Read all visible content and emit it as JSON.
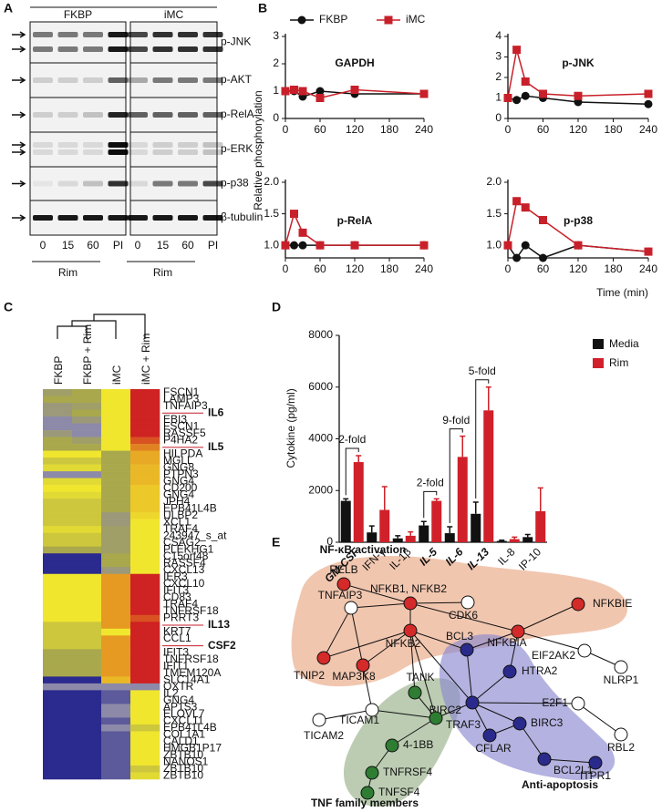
{
  "panel_labels": [
    "A",
    "B",
    "C",
    "D",
    "E"
  ],
  "blot": {
    "groups": [
      "FKBP",
      "iMC"
    ],
    "rows": [
      "p-JNK",
      "p-AKT",
      "p-RelA",
      "p-ERK",
      "p-p38",
      "β-tubulin"
    ],
    "lanes": [
      "0",
      "15",
      "60",
      "PI"
    ],
    "treatment": "Rim"
  },
  "chart_data": [
    {
      "type": "line",
      "ylabel": "Relative phosphorylation",
      "xlabel": "Time (min)",
      "x": [
        0,
        15,
        30,
        60,
        120,
        240
      ],
      "xlim": [
        0,
        240
      ],
      "xticks": [
        0,
        60,
        120,
        180,
        240
      ],
      "series": [
        {
          "name": "FKBP",
          "color": "#111111",
          "marker": "circle"
        },
        {
          "name": "iMC",
          "color": "#c8202a",
          "marker": "square"
        }
      ],
      "subplots": [
        {
          "title": "GAPDH",
          "ylim": [
            0,
            3
          ],
          "yticks": [
            0,
            1,
            2,
            3
          ],
          "values": [
            [
              1,
              1,
              0.8,
              1,
              0.9,
              0.9
            ],
            [
              1,
              1.05,
              1,
              0.75,
              1.05,
              0.9
            ]
          ]
        },
        {
          "title": "p-JNK",
          "ylim": [
            0,
            4
          ],
          "yticks": [
            0,
            1,
            2,
            3,
            4
          ],
          "values": [
            [
              1,
              0.9,
              1.1,
              1,
              0.8,
              0.7
            ],
            [
              1,
              3.35,
              1.8,
              1.2,
              1.1,
              1.2
            ]
          ]
        },
        {
          "title": "p-RelA",
          "ylim": [
            0.8,
            2
          ],
          "yticks": [
            {
              "value": 1,
              "label": "1.0"
            },
            {
              "value": 1.5,
              "label": "1.5"
            },
            {
              "value": 2,
              "label": "2.0"
            }
          ],
          "values": [
            [
              1,
              1,
              1,
              1,
              1,
              1
            ],
            [
              1,
              1.5,
              1.2,
              1,
              1,
              1
            ]
          ]
        },
        {
          "title": "p-p38",
          "ylim": [
            0.8,
            2
          ],
          "yticks": [
            {
              "value": 1,
              "label": "1.0"
            },
            {
              "value": 1.5,
              "label": "1.5"
            },
            {
              "value": 2,
              "label": "2.0"
            }
          ],
          "values": [
            [
              1,
              0.8,
              1,
              0.8,
              1,
              0.9
            ],
            [
              1,
              1.7,
              1.6,
              1.4,
              1,
              0.9
            ]
          ]
        }
      ]
    },
    {
      "type": "bar",
      "ylabel": "Cytokine (pg/ml)",
      "categories": [
        "GM-CSF",
        "IFN-γ",
        "IL-1β",
        "IL-5",
        "IL-6",
        "IL-13",
        "IL-8",
        "IP-10"
      ],
      "emphasis": [
        true,
        false,
        false,
        true,
        true,
        true,
        false,
        false
      ],
      "series": [
        {
          "name": "Media",
          "color": "#111111",
          "values": [
            1600,
            380,
            150,
            650,
            350,
            1100,
            50,
            200
          ],
          "errors": [
            80,
            250,
            100,
            150,
            250,
            450,
            30,
            100
          ]
        },
        {
          "name": "Rim",
          "color": "#d0202a",
          "values": [
            3100,
            1250,
            250,
            1600,
            3300,
            5100,
            120,
            1200
          ],
          "errors": [
            250,
            900,
            150,
            80,
            800,
            900,
            80,
            900
          ]
        }
      ],
      "ylim": [
        0,
        8000
      ],
      "yticks": [
        0,
        2000,
        4000,
        6000,
        8000
      ],
      "annotations": [
        {
          "text": "2-fold",
          "category": 0
        },
        {
          "text": "2-fold",
          "category": 3
        },
        {
          "text": "9-fold",
          "category": 4
        },
        {
          "text": "5-fold",
          "category": 5
        }
      ]
    }
  ],
  "heatmap": {
    "columns": [
      "FKBP",
      "FKBP + Rim",
      "iMC",
      "iMC + Rim"
    ],
    "colorscale": [
      [
        -2,
        "#2b2a8e"
      ],
      [
        -1,
        "#8c8aa8"
      ],
      [
        0,
        "#a9a84c"
      ],
      [
        1,
        "#f0e62e"
      ],
      [
        1.5,
        "#e69a22"
      ],
      [
        2,
        "#cf2222"
      ]
    ],
    "rows": [
      {
        "label": "FSCN1",
        "values": [
          -0.3,
          0,
          1,
          2
        ]
      },
      {
        "label": "LAMP3",
        "values": [
          0,
          0,
          1,
          2
        ]
      },
      {
        "label": "TNFAIP3",
        "values": [
          -0.5,
          -0.3,
          1,
          2
        ]
      },
      {
        "label": "IL6",
        "highlight": true,
        "values": [
          -0.5,
          0,
          1,
          2
        ]
      },
      {
        "label": "EBI3",
        "values": [
          -1,
          -0.5,
          1,
          2
        ]
      },
      {
        "label": "FSCN1",
        "values": [
          -1,
          -1,
          1,
          2
        ]
      },
      {
        "label": "RASSF5",
        "values": [
          -0.5,
          -1,
          1,
          2
        ]
      },
      {
        "label": "P4HA2",
        "values": [
          0,
          -0.3,
          1,
          1.8
        ]
      },
      {
        "label": "IL5",
        "highlight": true,
        "values": [
          0,
          0,
          1,
          1.6
        ]
      },
      {
        "label": "HILPDA",
        "values": [
          1,
          1,
          0,
          1.4
        ]
      },
      {
        "label": "MGLL",
        "values": [
          0.5,
          0.5,
          0,
          1.4
        ]
      },
      {
        "label": "GNG8",
        "values": [
          0.8,
          0.8,
          0,
          1.3
        ]
      },
      {
        "label": "PTPN3",
        "values": [
          -1,
          -1,
          0,
          1.3
        ]
      },
      {
        "label": "GNG4",
        "values": [
          0.8,
          0.8,
          0,
          1.3
        ]
      },
      {
        "label": "CD200",
        "values": [
          1,
          1,
          0,
          1.2
        ]
      },
      {
        "label": "GNG4",
        "values": [
          0.8,
          0.8,
          0,
          1.2
        ]
      },
      {
        "label": "JPH4",
        "values": [
          0.5,
          0.5,
          0,
          1.2
        ]
      },
      {
        "label": "EPB41L4B",
        "values": [
          0.5,
          0.5,
          0,
          1.2
        ]
      },
      {
        "label": "ULBP2",
        "values": [
          0.5,
          0.5,
          -0.5,
          1.1
        ]
      },
      {
        "label": "XCL1",
        "values": [
          0.5,
          0.5,
          -0.5,
          1
        ]
      },
      {
        "label": "TRAF4",
        "values": [
          0.8,
          0.8,
          -0.3,
          1
        ]
      },
      {
        "label": "243947_s_at",
        "values": [
          0.5,
          0.5,
          -0.3,
          1
        ]
      },
      {
        "label": "CSAG2",
        "values": [
          0.5,
          0.5,
          -0.3,
          1
        ]
      },
      {
        "label": "PLEKHG1",
        "values": [
          0,
          0,
          -0.3,
          1
        ]
      },
      {
        "label": "C15orf48",
        "values": [
          -2,
          -2,
          0,
          1
        ]
      },
      {
        "label": "RASSF4",
        "values": [
          -2,
          -2,
          0,
          1
        ]
      },
      {
        "label": "CXCL13",
        "values": [
          -2,
          -2,
          -0.5,
          1
        ]
      },
      {
        "label": "IER3",
        "values": [
          1,
          1,
          1.5,
          2
        ]
      },
      {
        "label": "CXCL10",
        "values": [
          1,
          1,
          1.5,
          2
        ]
      },
      {
        "label": "IFIT3",
        "values": [
          1,
          1,
          1.5,
          2
        ]
      },
      {
        "label": "CD83",
        "values": [
          1,
          1,
          1.5,
          2
        ]
      },
      {
        "label": "TRAF4",
        "values": [
          1,
          1,
          1.5,
          2
        ]
      },
      {
        "label": "TNFRSF18",
        "values": [
          1,
          1,
          1.5,
          2
        ]
      },
      {
        "label": "PRRT3",
        "values": [
          1,
          1,
          1.5,
          1.8
        ]
      },
      {
        "label": "IL13",
        "highlight": true,
        "values": [
          0.5,
          0.5,
          1.5,
          2
        ]
      },
      {
        "label": "KRT7",
        "values": [
          0.5,
          0.5,
          1,
          2
        ]
      },
      {
        "label": "CCL1",
        "values": [
          0.5,
          0.5,
          1.5,
          2
        ]
      },
      {
        "label": "CSF2",
        "highlight": true,
        "values": [
          0.5,
          0.5,
          1.5,
          2
        ]
      },
      {
        "label": "IFIT3",
        "values": [
          0,
          0,
          1.5,
          2
        ]
      },
      {
        "label": "TNFRSF18",
        "values": [
          0,
          0,
          1.5,
          2
        ]
      },
      {
        "label": "IFIT1",
        "values": [
          0,
          0,
          1.5,
          2
        ]
      },
      {
        "label": "TMEM120A",
        "values": [
          0,
          0,
          1.5,
          2
        ]
      },
      {
        "label": "SLC14A1",
        "values": [
          -2,
          -2,
          1.3,
          2
        ]
      },
      {
        "label": "OXTR",
        "values": [
          -1,
          -1,
          -1,
          -1
        ]
      },
      {
        "label": "IL2",
        "values": [
          -2,
          -2,
          -1.5,
          1
        ]
      },
      {
        "label": "GNG4",
        "values": [
          -2,
          -2,
          -1.5,
          1
        ]
      },
      {
        "label": "AP1S3",
        "values": [
          -2,
          -2,
          -1,
          1
        ]
      },
      {
        "label": "ELOVL7",
        "values": [
          -2,
          -2,
          -1,
          1
        ]
      },
      {
        "label": "CXCL11",
        "values": [
          -2,
          -2,
          -1.5,
          1
        ]
      },
      {
        "label": "EPB41L4B",
        "values": [
          -2,
          -2,
          -1,
          0.5
        ]
      },
      {
        "label": "COL1A1",
        "values": [
          -2,
          -2,
          -1.5,
          1
        ]
      },
      {
        "label": "CALD1",
        "values": [
          -2,
          -2,
          -1.5,
          1
        ]
      },
      {
        "label": "HMGB1P17",
        "values": [
          -2,
          -2,
          -1.5,
          1
        ]
      },
      {
        "label": "ZBTB10",
        "values": [
          -2,
          -2,
          -1.5,
          1
        ]
      },
      {
        "label": "NANOS1",
        "values": [
          -2,
          -2,
          -1.5,
          1
        ]
      },
      {
        "label": "ZBTB10",
        "values": [
          -2,
          -2,
          -1.5,
          0.5
        ]
      },
      {
        "label": "ZBTB10",
        "values": [
          -2,
          -2,
          -1.5,
          0.8
        ]
      }
    ]
  },
  "network": {
    "groups": [
      {
        "name": "NF-κB activation",
        "color": "#c41e2a"
      },
      {
        "name": "TNF family members",
        "color": "#2d6a2d"
      },
      {
        "name": "Anti-apoptosis",
        "color": "#23237a"
      }
    ],
    "nodes": [
      {
        "label": "RELB",
        "color": "#d42a2a"
      },
      {
        "label": "TNFAIP3",
        "color": "#ffffff"
      },
      {
        "label": "NFKB1, NFKB2",
        "color": "#d42a2a"
      },
      {
        "label": "CDK6",
        "color": "#ffffff"
      },
      {
        "label": "NFKBIE",
        "color": "#d42a2a"
      },
      {
        "label": "NFKB2",
        "color": "#d42a2a"
      },
      {
        "label": "NFKBIA",
        "color": "#d42a2a"
      },
      {
        "label": "BCL3",
        "color": "#2a2a8c"
      },
      {
        "label": "EIF2AK2",
        "color": "#ffffff"
      },
      {
        "label": "NLRP1",
        "color": "#ffffff"
      },
      {
        "label": "TNIP2",
        "color": "#d42a2a"
      },
      {
        "label": "MAP3K8",
        "color": "#d42a2a"
      },
      {
        "label": "TANK",
        "color": "#2e7d32"
      },
      {
        "label": "HTRA2",
        "color": "#2a2a8c"
      },
      {
        "label": "BIRC2",
        "color": "#2a2a8c"
      },
      {
        "label": "TICAM1",
        "color": "#ffffff"
      },
      {
        "label": "TRAF3",
        "color": "#2e7d32"
      },
      {
        "label": "E2F1",
        "color": "#ffffff"
      },
      {
        "label": "BIRC3",
        "color": "#2a2a8c"
      },
      {
        "label": "TICAM2",
        "color": "#ffffff"
      },
      {
        "label": "RBL2",
        "color": "#ffffff"
      },
      {
        "label": "CFLAR",
        "color": "#2a2a8c"
      },
      {
        "label": "4-1BB",
        "color": "#2e7d32"
      },
      {
        "label": "BCL2L1",
        "color": "#2a2a8c"
      },
      {
        "label": "ITPR1",
        "color": "#2a2a8c"
      },
      {
        "label": "TNFRSF4",
        "color": "#2e7d32"
      },
      {
        "label": "TNFSF4",
        "color": "#2e7d32"
      }
    ],
    "edges": [
      [
        0,
        2
      ],
      [
        1,
        2
      ],
      [
        1,
        10
      ],
      [
        1,
        15
      ],
      [
        2,
        3
      ],
      [
        2,
        5
      ],
      [
        2,
        6
      ],
      [
        4,
        6
      ],
      [
        6,
        8
      ],
      [
        6,
        7
      ],
      [
        6,
        13
      ],
      [
        5,
        10
      ],
      [
        5,
        11
      ],
      [
        5,
        7
      ],
      [
        5,
        12
      ],
      [
        5,
        16
      ],
      [
        5,
        14
      ],
      [
        7,
        14
      ],
      [
        8,
        9
      ],
      [
        12,
        16
      ],
      [
        15,
        16
      ],
      [
        15,
        19
      ],
      [
        16,
        14
      ],
      [
        16,
        22
      ],
      [
        14,
        13
      ],
      [
        14,
        18
      ],
      [
        14,
        17
      ],
      [
        14,
        21
      ],
      [
        17,
        20
      ],
      [
        18,
        23
      ],
      [
        23,
        24
      ],
      [
        22,
        25
      ],
      [
        25,
        26
      ],
      [
        18,
        21
      ]
    ]
  }
}
